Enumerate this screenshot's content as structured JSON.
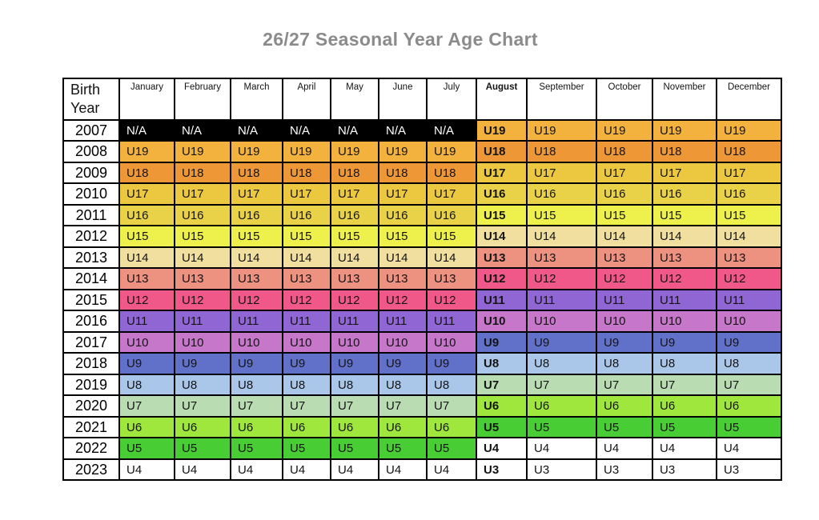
{
  "title": "26/27 Seasonal Year Age Chart",
  "title_color": "#8b8b8b",
  "chart_data": {
    "type": "table",
    "title": "26/27 Seasonal Year Age Chart",
    "corner_header": "Birth Year",
    "columns": [
      "January",
      "February",
      "March",
      "April",
      "May",
      "June",
      "July",
      "August",
      "September",
      "October",
      "November",
      "December"
    ],
    "bold_column": "August",
    "rows": [
      {
        "year": "2007",
        "cells": [
          "N/A",
          "N/A",
          "N/A",
          "N/A",
          "N/A",
          "N/A",
          "N/A",
          "U19",
          "U19",
          "U19",
          "U19",
          "U19"
        ]
      },
      {
        "year": "2008",
        "cells": [
          "U19",
          "U19",
          "U19",
          "U19",
          "U19",
          "U19",
          "U19",
          "U18",
          "U18",
          "U18",
          "U18",
          "U18"
        ]
      },
      {
        "year": "2009",
        "cells": [
          "U18",
          "U18",
          "U18",
          "U18",
          "U18",
          "U18",
          "U18",
          "U17",
          "U17",
          "U17",
          "U17",
          "U17"
        ]
      },
      {
        "year": "2010",
        "cells": [
          "U17",
          "U17",
          "U17",
          "U17",
          "U17",
          "U17",
          "U17",
          "U16",
          "U16",
          "U16",
          "U16",
          "U16"
        ]
      },
      {
        "year": "2011",
        "cells": [
          "U16",
          "U16",
          "U16",
          "U16",
          "U16",
          "U16",
          "U16",
          "U15",
          "U15",
          "U15",
          "U15",
          "U15"
        ]
      },
      {
        "year": "2012",
        "cells": [
          "U15",
          "U15",
          "U15",
          "U15",
          "U15",
          "U15",
          "U15",
          "U14",
          "U14",
          "U14",
          "U14",
          "U14"
        ]
      },
      {
        "year": "2013",
        "cells": [
          "U14",
          "U14",
          "U14",
          "U14",
          "U14",
          "U14",
          "U14",
          "U13",
          "U13",
          "U13",
          "U13",
          "U13"
        ]
      },
      {
        "year": "2014",
        "cells": [
          "U13",
          "U13",
          "U13",
          "U13",
          "U13",
          "U13",
          "U13",
          "U12",
          "U12",
          "U12",
          "U12",
          "U12"
        ]
      },
      {
        "year": "2015",
        "cells": [
          "U12",
          "U12",
          "U12",
          "U12",
          "U12",
          "U12",
          "U12",
          "U11",
          "U11",
          "U11",
          "U11",
          "U11"
        ]
      },
      {
        "year": "2016",
        "cells": [
          "U11",
          "U11",
          "U11",
          "U11",
          "U11",
          "U11",
          "U11",
          "U10",
          "U10",
          "U10",
          "U10",
          "U10"
        ]
      },
      {
        "year": "2017",
        "cells": [
          "U10",
          "U10",
          "U10",
          "U10",
          "U10",
          "U10",
          "U10",
          "U9",
          "U9",
          "U9",
          "U9",
          "U9"
        ]
      },
      {
        "year": "2018",
        "cells": [
          "U9",
          "U9",
          "U9",
          "U9",
          "U9",
          "U9",
          "U9",
          "U8",
          "U8",
          "U8",
          "U8",
          "U8"
        ]
      },
      {
        "year": "2019",
        "cells": [
          "U8",
          "U8",
          "U8",
          "U8",
          "U8",
          "U8",
          "U8",
          "U7",
          "U7",
          "U7",
          "U7",
          "U7"
        ]
      },
      {
        "year": "2020",
        "cells": [
          "U7",
          "U7",
          "U7",
          "U7",
          "U7",
          "U7",
          "U7",
          "U6",
          "U6",
          "U6",
          "U6",
          "U6"
        ]
      },
      {
        "year": "2021",
        "cells": [
          "U6",
          "U6",
          "U6",
          "U6",
          "U6",
          "U6",
          "U6",
          "U5",
          "U5",
          "U5",
          "U5",
          "U5"
        ]
      },
      {
        "year": "2022",
        "cells": [
          "U5",
          "U5",
          "U5",
          "U5",
          "U5",
          "U5",
          "U5",
          "U4",
          "U4",
          "U4",
          "U4",
          "U4"
        ]
      },
      {
        "year": "2023",
        "cells": [
          "U4",
          "U4",
          "U4",
          "U4",
          "U4",
          "U4",
          "U4",
          "U3",
          "U3",
          "U3",
          "U3",
          "U3"
        ]
      }
    ],
    "cell_styles": {
      "N/A": {
        "bg": "#000000",
        "fg": "#ffffff"
      },
      "U19": {
        "bg": "#f2b23d",
        "fg": "#141414"
      },
      "U18": {
        "bg": "#ee9737",
        "fg": "#141414"
      },
      "U17": {
        "bg": "#ebc83f",
        "fg": "#141414"
      },
      "U16": {
        "bg": "#ead248",
        "fg": "#141414"
      },
      "U15": {
        "bg": "#eef04c",
        "fg": "#141414"
      },
      "U14": {
        "bg": "#f0df9f",
        "fg": "#141414"
      },
      "U13": {
        "bg": "#ed9180",
        "fg": "#141414"
      },
      "U12": {
        "bg": "#f0588a",
        "fg": "#141414"
      },
      "U11": {
        "bg": "#9066d5",
        "fg": "#141414"
      },
      "U10": {
        "bg": "#c677c9",
        "fg": "#141414"
      },
      "U9": {
        "bg": "#6171ca",
        "fg": "#141414"
      },
      "U8": {
        "bg": "#aac7e9",
        "fg": "#141414"
      },
      "U7": {
        "bg": "#badcb2",
        "fg": "#141414"
      },
      "U6": {
        "bg": "#9fe73d",
        "fg": "#141414"
      },
      "U5": {
        "bg": "#48ce34",
        "fg": "#141414"
      },
      "U4": {
        "bg": "#ffffff",
        "fg": "#141414"
      },
      "U3": {
        "bg": "#ffffff",
        "fg": "#141414"
      }
    }
  }
}
